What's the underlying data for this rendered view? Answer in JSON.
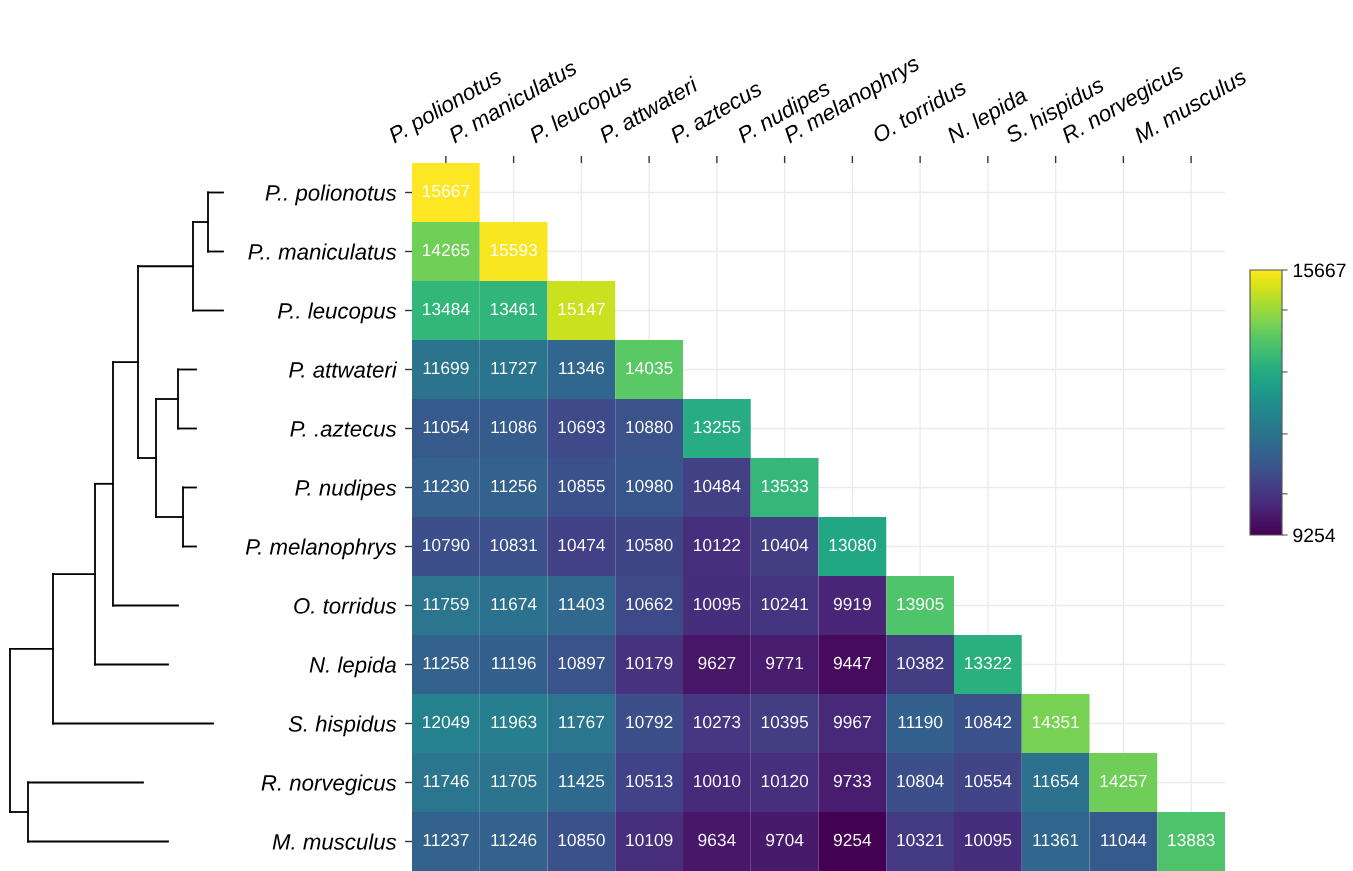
{
  "chart_data": {
    "type": "heatmap",
    "categories": [
      "P. polionotus",
      "P. maniculatus",
      "P. leucopus",
      "P. attwateri",
      "P. aztecus",
      "P. nudipes",
      "P. melanophrys",
      "O. torridus",
      "N. lepida",
      "S. hispidus",
      "R. norvegicus",
      "M. musculus"
    ],
    "y_categories": [
      "P.. polionotus",
      "P.. maniculatus",
      "P.. leucopus",
      "P. attwateri",
      "P. .aztecus",
      "P. nudipes",
      "P. melanophrys",
      "O. torridus",
      "N. lepida",
      "S. hispidus",
      "R. norvegicus",
      "M. musculus"
    ],
    "cells": [
      [
        15667,
        null,
        null,
        null,
        null,
        null,
        null,
        null,
        null,
        null,
        null,
        null
      ],
      [
        14265,
        15593,
        null,
        null,
        null,
        null,
        null,
        null,
        null,
        null,
        null,
        null
      ],
      [
        13484,
        13461,
        15147,
        null,
        null,
        null,
        null,
        null,
        null,
        null,
        null,
        null
      ],
      [
        11699,
        11727,
        11346,
        14035,
        null,
        null,
        null,
        null,
        null,
        null,
        null,
        null
      ],
      [
        11054,
        11086,
        10693,
        10880,
        13255,
        null,
        null,
        null,
        null,
        null,
        null,
        null
      ],
      [
        11230,
        11256,
        10855,
        10980,
        10484,
        13533,
        null,
        null,
        null,
        null,
        null,
        null
      ],
      [
        10790,
        10831,
        10474,
        10580,
        10122,
        10404,
        13080,
        null,
        null,
        null,
        null,
        null
      ],
      [
        11759,
        11674,
        11403,
        10662,
        10095,
        10241,
        9919,
        13905,
        null,
        null,
        null,
        null
      ],
      [
        11258,
        11196,
        10897,
        10179,
        9627,
        9771,
        9447,
        10382,
        13322,
        null,
        null,
        null
      ],
      [
        12049,
        11963,
        11767,
        10792,
        10273,
        10395,
        9967,
        11190,
        10842,
        14351,
        null,
        null
      ],
      [
        11746,
        11705,
        11425,
        10513,
        10010,
        10120,
        9733,
        10804,
        10554,
        11654,
        14257,
        null
      ],
      [
        11237,
        11246,
        10850,
        10109,
        9634,
        9704,
        9254,
        10321,
        10095,
        11361,
        11044,
        13883
      ]
    ],
    "clim": [
      9254,
      15667
    ],
    "cticks": [
      9254,
      {
        "value": 10250,
        "label": null
      },
      {
        "value": 11700,
        "label": null
      },
      {
        "value": 13200,
        "label": null
      },
      {
        "value": 14700,
        "label": null
      },
      15667
    ],
    "data_labels": true,
    "grid": true
  }
}
